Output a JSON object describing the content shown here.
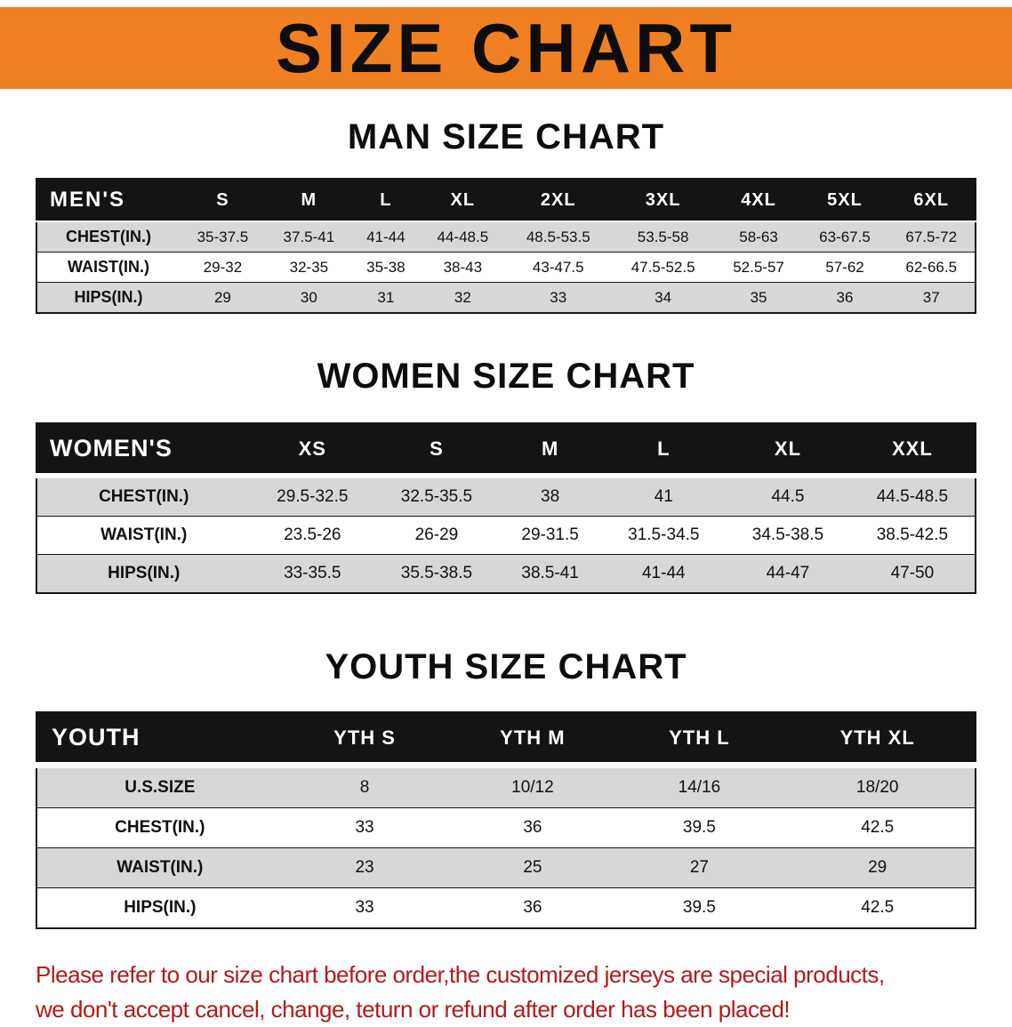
{
  "banner": {
    "title": "SIZE CHART"
  },
  "colors": {
    "banner_bg": "#F08021",
    "header_bg": "#141414",
    "row_alt": "#D7D7D7",
    "footer_text": "#B21A1A"
  },
  "sections": [
    {
      "heading": "MAN SIZE CHART"
    },
    {
      "heading": "WOMEN SIZE CHART"
    },
    {
      "heading": "YOUTH SIZE CHART"
    }
  ],
  "tables": {
    "men": {
      "header": [
        "MEN'S",
        "S",
        "M",
        "L",
        "XL",
        "2XL",
        "3XL",
        "4XL",
        "5XL",
        "6XL"
      ],
      "rows": [
        {
          "label": "CHEST(IN.)",
          "values": [
            "35-37.5",
            "37.5-41",
            "41-44",
            "44-48.5",
            "48.5-53.5",
            "53.5-58",
            "58-63",
            "63-67.5",
            "67.5-72"
          ]
        },
        {
          "label": "WAIST(IN.)",
          "values": [
            "29-32",
            "32-35",
            "35-38",
            "38-43",
            "43-47.5",
            "47.5-52.5",
            "52.5-57",
            "57-62",
            "62-66.5"
          ]
        },
        {
          "label": "HIPS(IN.)",
          "values": [
            "29",
            "30",
            "31",
            "32",
            "33",
            "34",
            "35",
            "36",
            "37"
          ]
        }
      ]
    },
    "women": {
      "header": [
        "WOMEN'S",
        "XS",
        "S",
        "M",
        "L",
        "XL",
        "XXL"
      ],
      "rows": [
        {
          "label": "CHEST(IN.)",
          "values": [
            "29.5-32.5",
            "32.5-35.5",
            "38",
            "41",
            "44.5",
            "44.5-48.5"
          ]
        },
        {
          "label": "WAIST(IN.)",
          "values": [
            "23.5-26",
            "26-29",
            "29-31.5",
            "31.5-34.5",
            "34.5-38.5",
            "38.5-42.5"
          ]
        },
        {
          "label": "HIPS(IN.)",
          "values": [
            "33-35.5",
            "35.5-38.5",
            "38.5-41",
            "41-44",
            "44-47",
            "47-50"
          ]
        }
      ]
    },
    "youth": {
      "header": [
        "YOUTH",
        "YTH S",
        "YTH M",
        "YTH L",
        "YTH XL"
      ],
      "rows": [
        {
          "label": "U.S.SIZE",
          "values": [
            "8",
            "10/12",
            "14/16",
            "18/20"
          ]
        },
        {
          "label": "CHEST(IN.)",
          "values": [
            "33",
            "36",
            "39.5",
            "42.5"
          ]
        },
        {
          "label": "WAIST(IN.)",
          "values": [
            "23",
            "25",
            "27",
            "29"
          ]
        },
        {
          "label": "HIPS(IN.)",
          "values": [
            "33",
            "36",
            "39.5",
            "42.5"
          ]
        }
      ]
    }
  },
  "footer": {
    "line1": "Please refer to our size chart before order,the customized jerseys are special products,",
    "line2": "we don't accept cancel, change, teturn or refund after order has been placed!"
  }
}
